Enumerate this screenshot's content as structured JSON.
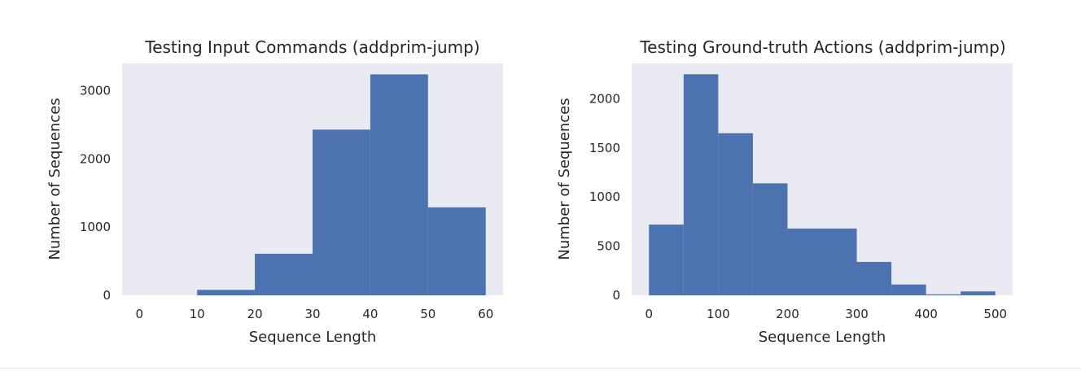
{
  "chart_data": [
    {
      "type": "bar",
      "title": "Testing Input Commands (addprim-jump)",
      "xlabel": "Sequence Length",
      "ylabel": "Number of Sequences",
      "bin_edges": [
        0,
        10,
        20,
        30,
        40,
        50,
        60
      ],
      "values": [
        0,
        80,
        610,
        2430,
        3240,
        1290
      ],
      "color": "#4c72b0",
      "background": "#eaeaf2",
      "grid": false,
      "xlim": [
        -3,
        63
      ],
      "ylim": [
        0,
        3400
      ],
      "xticks": [
        0,
        10,
        20,
        30,
        40,
        50,
        60
      ],
      "xtick_labels": [
        "0",
        "10",
        "20",
        "30",
        "40",
        "50",
        "60"
      ],
      "yticks": [
        0,
        1000,
        2000,
        3000
      ],
      "ytick_labels": [
        "0",
        "1000",
        "2000",
        "3000"
      ]
    },
    {
      "type": "bar",
      "title": "Testing Ground-truth Actions (addprim-jump)",
      "xlabel": "Sequence Length",
      "ylabel": "Number of Sequences",
      "bin_edges": [
        0,
        50,
        100,
        150,
        200,
        250,
        300,
        350,
        400,
        450,
        500
      ],
      "values": [
        720,
        2250,
        1650,
        1140,
        680,
        680,
        340,
        110,
        10,
        40
      ],
      "color": "#4c72b0",
      "background": "#eaeaf2",
      "grid": false,
      "xlim": [
        -25,
        525
      ],
      "ylim": [
        0,
        2360
      ],
      "xticks": [
        0,
        100,
        200,
        300,
        400,
        500
      ],
      "xtick_labels": [
        "0",
        "100",
        "200",
        "300",
        "400",
        "500"
      ],
      "yticks": [
        0,
        500,
        1000,
        1500,
        2000
      ],
      "ytick_labels": [
        "0",
        "500",
        "1000",
        "1500",
        "2000"
      ]
    }
  ]
}
